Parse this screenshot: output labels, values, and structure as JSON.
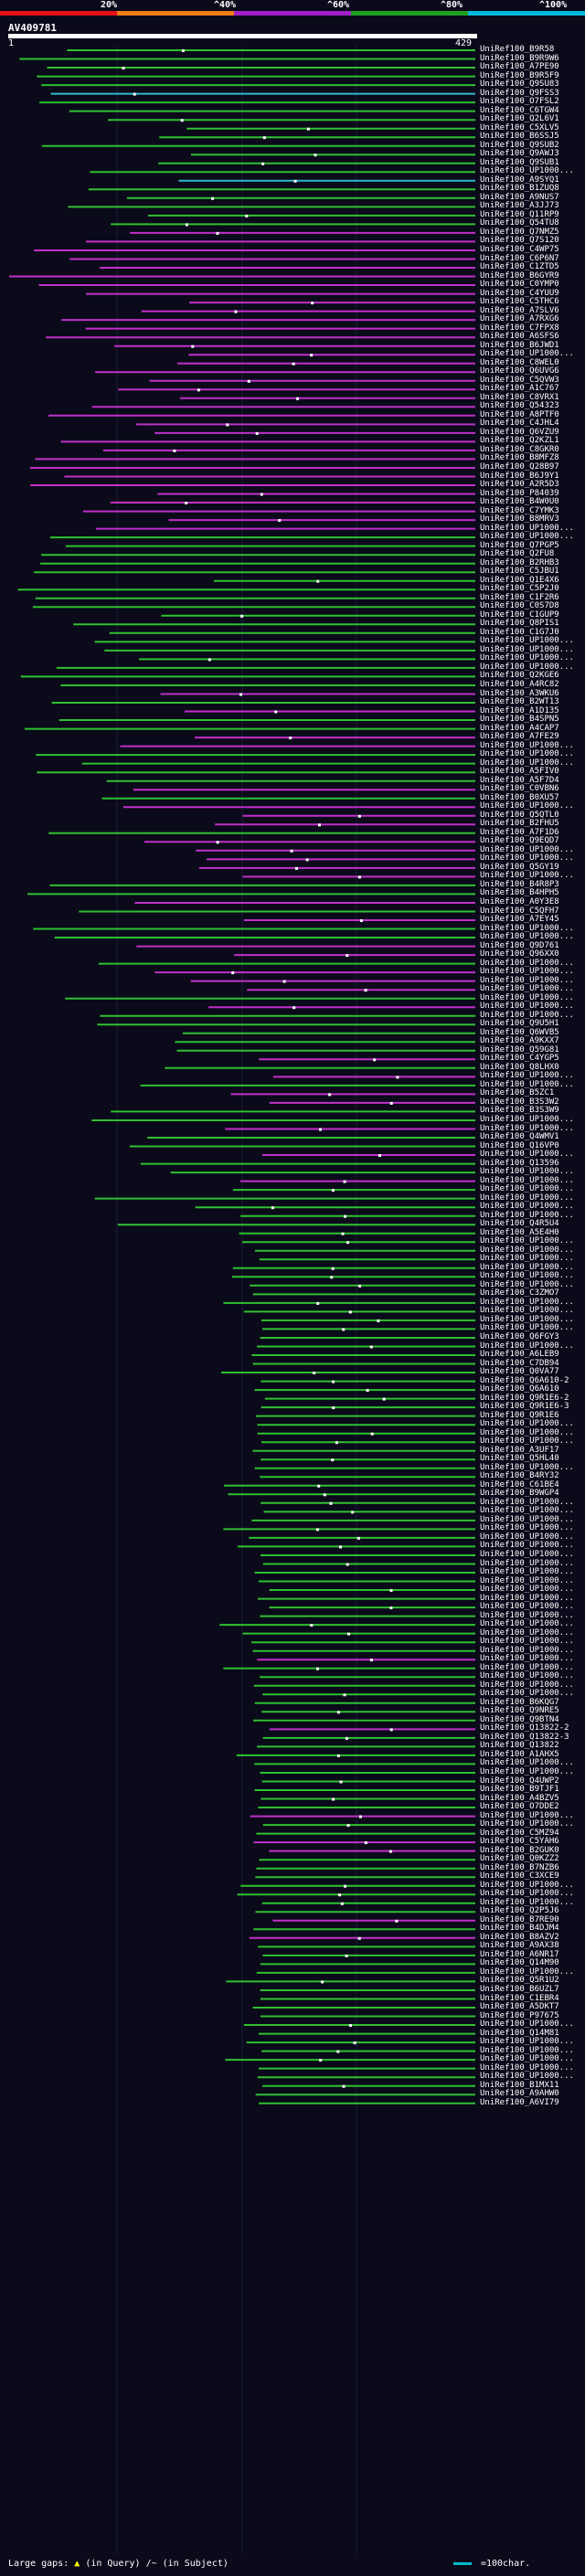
{
  "scale": {
    "ticks": [
      "20%",
      "^40%",
      "^60%",
      "^80%",
      "^100%"
    ],
    "colors": [
      "#e8101a",
      "#f07c14",
      "#a020c8",
      "#20a020",
      "#00b8d8"
    ]
  },
  "query": {
    "title": "AV409781",
    "start": "1",
    "end": "429"
  },
  "hit_labels": [
    "UniRef100_B9R58",
    "UniRef100_B9R9W6",
    "UniRef100_A7PE90",
    "UniRef100_B9R5F9",
    "UniRef100_Q9SU83",
    "UniRef100_Q9FSS3",
    "UniRef100_O7FSL2",
    "UniRef100_C6TGW4",
    "UniRef100_Q2L6V1",
    "UniRef100_C5XLV5",
    "UniRef100_B6SSJ5",
    "UniRef100_Q9SUB2",
    "UniRef100_Q9AWJ3",
    "UniRef100_Q9SUB1",
    "UniRef100_UP1000...",
    "UniRef100_A9SYQ1",
    "UniRef100_B1ZUQ8",
    "UniRef100_A9NUS7",
    "UniRef100_A3JJ73",
    "UniRef100_Q11RP9",
    "UniRef100_Q54TU8",
    "UniRef100_Q7NMZ5",
    "UniRef100_Q7S120",
    "UniRef100_C4WP75",
    "UniRef100_C6P6N7",
    "UniRef100_C1ZTD5",
    "UniRef100_B6GYR9",
    "UniRef100_C0YMP0",
    "UniRef100_C4YUU9",
    "UniRef100_C5THC6",
    "UniRef100_A7SLV6",
    "UniRef100_A7RXG6",
    "UniRef100_C7FPX8",
    "UniRef100_A6SFS6",
    "UniRef100_B6JWD1",
    "UniRef100_UP1000...",
    "UniRef100_C8WEL0",
    "UniRef100_Q6UVG6",
    "UniRef100_C5QVW3",
    "UniRef100_A1C767",
    "UniRef100_C8VRX1",
    "UniRef100_Q54323",
    "UniRef100_A8PTF0",
    "UniRef100_C4JHL4",
    "UniRef100_Q6VZU9",
    "UniRef100_Q2KZL1",
    "UniRef100_C8GKR0",
    "UniRef100_B8MFZ8",
    "UniRef100_Q28B97",
    "UniRef100_B6J9Y1",
    "UniRef100_A2R5D3",
    "UniRef100_P84039",
    "UniRef100_B4W0U0",
    "UniRef100_C7YMK3",
    "UniRef100_B8MRV3",
    "UniRef100_UP1000...",
    "UniRef100_UP1000...",
    "UniRef100_Q7PGP5",
    "UniRef100_Q2FU8",
    "UniRef100_B2RHB3",
    "UniRef100_C5JBU1",
    "UniRef100_Q1E4X6",
    "UniRef100_C5P2J0",
    "UniRef100_C1F2R6",
    "UniRef100_C0S7D8",
    "UniRef100_C1GUP9",
    "UniRef100_Q8PIS1",
    "UniRef100_C1G7J0",
    "UniRef100_UP1000...",
    "UniRef100_UP1000...",
    "UniRef100_UP1000...",
    "UniRef100_UP1000...",
    "UniRef100_Q2KGE6",
    "UniRef100_A4RC82",
    "UniRef100_A3WKU6",
    "UniRef100_B2WT13",
    "UniRef100_A1D135",
    "UniRef100_B4SPN5",
    "UniRef100_A4CAP7",
    "UniRef100_A7FE29",
    "UniRef100_UP1000...",
    "UniRef100_UP1000...",
    "UniRef100_UP1000...",
    "UniRef100_A5FIV0",
    "UniRef100_A5F7D4",
    "UniRef100_C0VBN6",
    "UniRef100_B0XU57",
    "UniRef100_UP1000...",
    "UniRef100_Q5QTL0",
    "UniRef100_B2FHU5",
    "UniRef100_A7F1D6",
    "UniRef100_Q9EQD7",
    "UniRef100_UP1000...",
    "UniRef100_UP1000...",
    "UniRef100_Q5GY19",
    "UniRef100_UP1000...",
    "UniRef100_B4R8P3",
    "UniRef100_B4HPH5",
    "UniRef100_A0Y3E8",
    "UniRef100_C5QFH7",
    "UniRef100_A7EY45",
    "UniRef100_UP1000...",
    "UniRef100_UP1000...",
    "UniRef100_Q9D761",
    "UniRef100_Q96XX0",
    "UniRef100_UP1000...",
    "UniRef100_UP1000...",
    "UniRef100_UP1000...",
    "UniRef100_UP1000...",
    "UniRef100_UP1000...",
    "UniRef100_UP1000...",
    "UniRef100_UP1000...",
    "UniRef100_Q9U5H1",
    "UniRef100_Q6WVB5",
    "UniRef100_A9KXX7",
    "UniRef100_Q59G81",
    "UniRef100_C4YGP5",
    "UniRef100_Q8LHX0",
    "UniRef100_UP1000...",
    "UniRef100_UP1000...",
    "UniRef100_B5ZC1",
    "UniRef100_B3S3W2",
    "UniRef100_B3S3W9",
    "UniRef100_UP1000...",
    "UniRef100_UP1000...",
    "UniRef100_Q4WMV1",
    "UniRef100_Q16VP0",
    "UniRef100_UP1000...",
    "UniRef100_Q13596",
    "UniRef100_UP1000...",
    "UniRef100_UP1000...",
    "UniRef100_UP1000...",
    "UniRef100_UP1000...",
    "UniRef100_UP1000...",
    "UniRef100_UP1000...",
    "UniRef100_Q4R5U4",
    "UniRef100_A5E4H0",
    "UniRef100_UP1000...",
    "UniRef100_UP1000...",
    "UniRef100_UP1000...",
    "UniRef100_UP1000...",
    "UniRef100_UP1000...",
    "UniRef100_UP1000...",
    "UniRef100_C3ZMO7",
    "UniRef100_UP1000...",
    "UniRef100_UP1000...",
    "UniRef100_UP1000...",
    "UniRef100_UP1000...",
    "UniRef100_Q6FGY3",
    "UniRef100_UP1000...",
    "UniRef100_A6LEB9",
    "UniRef100_C7DB94",
    "UniRef100_Q0VA77",
    "UniRef100_Q6A610-2",
    "UniRef100_Q6A610",
    "UniRef100_Q9R1E6-2",
    "UniRef100_Q9R1E6-3",
    "UniRef100_Q9R1E6",
    "UniRef100_UP1000...",
    "UniRef100_UP1000...",
    "UniRef100_UP1000...",
    "UniRef100_A3UF17",
    "UniRef100_Q5HL40",
    "UniRef100_UP1000...",
    "UniRef100_B4RY32",
    "UniRef100_C61BE4",
    "UniRef100_B9WGP4",
    "UniRef100_UP1000...",
    "UniRef100_UP1000...",
    "UniRef100_UP1000...",
    "UniRef100_UP1000...",
    "UniRef100_UP1000...",
    "UniRef100_UP1000...",
    "UniRef100_UP1000...",
    "UniRef100_UP1000...",
    "UniRef100_UP1000...",
    "UniRef100_UP1000...",
    "UniRef100_UP1000...",
    "UniRef100_UP1000...",
    "UniRef100_UP1000...",
    "UniRef100_UP1000...",
    "UniRef100_UP1000...",
    "UniRef100_UP1000...",
    "UniRef100_UP1000...",
    "UniRef100_UP1000...",
    "UniRef100_UP1000...",
    "UniRef100_UP1000...",
    "UniRef100_UP1000...",
    "UniRef100_UP1000...",
    "UniRef100_UP1000...",
    "UniRef100_B6KQG7",
    "UniRef100_Q9NRE5",
    "UniRef100_Q9BTN4",
    "UniRef100_Q13822-2",
    "UniRef100_Q13822-3",
    "UniRef100_Q13822",
    "UniRef100_A1AHX5",
    "UniRef100_UP1000...",
    "UniRef100_UP1000...",
    "UniRef100_Q4UWP2",
    "UniRef100_B9TJF1",
    "UniRef100_A4BZV5",
    "UniRef100_O7DDE2",
    "UniRef100_UP1000...",
    "UniRef100_UP1000...",
    "UniRef100_C5MZ94",
    "UniRef100_C5YAH6",
    "UniRef100_B2GUK0",
    "UniRef100_Q0KZZ2",
    "UniRef100_B7NZB6",
    "UniRef100_C3XCE9",
    "UniRef100_UP1000...",
    "UniRef100_UP1000...",
    "UniRef100_UP1000...",
    "UniRef100_Q2P5J6",
    "UniRef100_B7RE90",
    "UniRef100_B4DJM4",
    "UniRef100_B8AZV2",
    "UniRef100_A9AX38",
    "UniRef100_A6NR17",
    "UniRef100_Q14M90",
    "UniRef100_UP1000...",
    "UniRef100_Q5R1U2",
    "UniRef100_B6UZL7",
    "UniRef100_C1EBR4",
    "UniRef100_A5DKT7",
    "UniRef100_P97675",
    "UniRef100_UP1000...",
    "UniRef100_Q14M81",
    "UniRef100_UP1000...",
    "UniRef100_UP1000...",
    "UniRef100_UP1000...",
    "UniRef100_UP1000...",
    "UniRef100_UP1000...",
    "UniRef100_B1MX11",
    "UniRef100_A9AHW0",
    "UniRef100_A6VI79"
  ],
  "footer": {
    "gaps_label": "Large gaps: ",
    "gaps_query": "(in Query)",
    "gaps_subject": "(in Subject)",
    "scale_label": "=100char."
  }
}
